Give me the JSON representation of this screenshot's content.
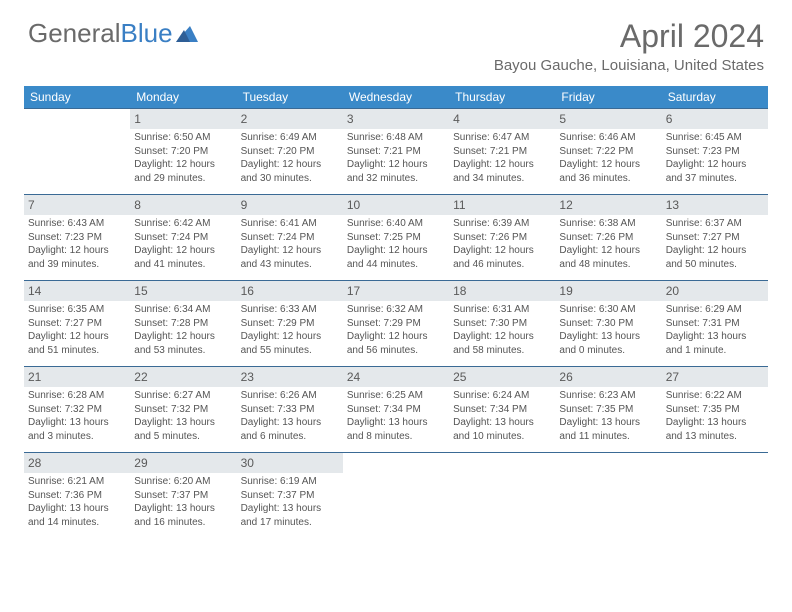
{
  "brand": {
    "part1": "General",
    "part2": "Blue"
  },
  "title": "April 2024",
  "location": "Bayou Gauche, Louisiana, United States",
  "weekdays": [
    "Sunday",
    "Monday",
    "Tuesday",
    "Wednesday",
    "Thursday",
    "Friday",
    "Saturday"
  ],
  "colors": {
    "header_bg": "#3a8ac9",
    "header_text": "#ffffff",
    "daynum_bg": "#e4e8eb",
    "border": "#3a6a95",
    "text": "#555555",
    "title": "#6a6a6a",
    "brand_blue": "#3a7fc4"
  },
  "weeks": [
    [
      {
        "n": "",
        "sr": "",
        "ss": "",
        "dl1": "",
        "dl2": ""
      },
      {
        "n": "1",
        "sr": "Sunrise: 6:50 AM",
        "ss": "Sunset: 7:20 PM",
        "dl1": "Daylight: 12 hours",
        "dl2": "and 29 minutes."
      },
      {
        "n": "2",
        "sr": "Sunrise: 6:49 AM",
        "ss": "Sunset: 7:20 PM",
        "dl1": "Daylight: 12 hours",
        "dl2": "and 30 minutes."
      },
      {
        "n": "3",
        "sr": "Sunrise: 6:48 AM",
        "ss": "Sunset: 7:21 PM",
        "dl1": "Daylight: 12 hours",
        "dl2": "and 32 minutes."
      },
      {
        "n": "4",
        "sr": "Sunrise: 6:47 AM",
        "ss": "Sunset: 7:21 PM",
        "dl1": "Daylight: 12 hours",
        "dl2": "and 34 minutes."
      },
      {
        "n": "5",
        "sr": "Sunrise: 6:46 AM",
        "ss": "Sunset: 7:22 PM",
        "dl1": "Daylight: 12 hours",
        "dl2": "and 36 minutes."
      },
      {
        "n": "6",
        "sr": "Sunrise: 6:45 AM",
        "ss": "Sunset: 7:23 PM",
        "dl1": "Daylight: 12 hours",
        "dl2": "and 37 minutes."
      }
    ],
    [
      {
        "n": "7",
        "sr": "Sunrise: 6:43 AM",
        "ss": "Sunset: 7:23 PM",
        "dl1": "Daylight: 12 hours",
        "dl2": "and 39 minutes."
      },
      {
        "n": "8",
        "sr": "Sunrise: 6:42 AM",
        "ss": "Sunset: 7:24 PM",
        "dl1": "Daylight: 12 hours",
        "dl2": "and 41 minutes."
      },
      {
        "n": "9",
        "sr": "Sunrise: 6:41 AM",
        "ss": "Sunset: 7:24 PM",
        "dl1": "Daylight: 12 hours",
        "dl2": "and 43 minutes."
      },
      {
        "n": "10",
        "sr": "Sunrise: 6:40 AM",
        "ss": "Sunset: 7:25 PM",
        "dl1": "Daylight: 12 hours",
        "dl2": "and 44 minutes."
      },
      {
        "n": "11",
        "sr": "Sunrise: 6:39 AM",
        "ss": "Sunset: 7:26 PM",
        "dl1": "Daylight: 12 hours",
        "dl2": "and 46 minutes."
      },
      {
        "n": "12",
        "sr": "Sunrise: 6:38 AM",
        "ss": "Sunset: 7:26 PM",
        "dl1": "Daylight: 12 hours",
        "dl2": "and 48 minutes."
      },
      {
        "n": "13",
        "sr": "Sunrise: 6:37 AM",
        "ss": "Sunset: 7:27 PM",
        "dl1": "Daylight: 12 hours",
        "dl2": "and 50 minutes."
      }
    ],
    [
      {
        "n": "14",
        "sr": "Sunrise: 6:35 AM",
        "ss": "Sunset: 7:27 PM",
        "dl1": "Daylight: 12 hours",
        "dl2": "and 51 minutes."
      },
      {
        "n": "15",
        "sr": "Sunrise: 6:34 AM",
        "ss": "Sunset: 7:28 PM",
        "dl1": "Daylight: 12 hours",
        "dl2": "and 53 minutes."
      },
      {
        "n": "16",
        "sr": "Sunrise: 6:33 AM",
        "ss": "Sunset: 7:29 PM",
        "dl1": "Daylight: 12 hours",
        "dl2": "and 55 minutes."
      },
      {
        "n": "17",
        "sr": "Sunrise: 6:32 AM",
        "ss": "Sunset: 7:29 PM",
        "dl1": "Daylight: 12 hours",
        "dl2": "and 56 minutes."
      },
      {
        "n": "18",
        "sr": "Sunrise: 6:31 AM",
        "ss": "Sunset: 7:30 PM",
        "dl1": "Daylight: 12 hours",
        "dl2": "and 58 minutes."
      },
      {
        "n": "19",
        "sr": "Sunrise: 6:30 AM",
        "ss": "Sunset: 7:30 PM",
        "dl1": "Daylight: 13 hours",
        "dl2": "and 0 minutes."
      },
      {
        "n": "20",
        "sr": "Sunrise: 6:29 AM",
        "ss": "Sunset: 7:31 PM",
        "dl1": "Daylight: 13 hours",
        "dl2": "and 1 minute."
      }
    ],
    [
      {
        "n": "21",
        "sr": "Sunrise: 6:28 AM",
        "ss": "Sunset: 7:32 PM",
        "dl1": "Daylight: 13 hours",
        "dl2": "and 3 minutes."
      },
      {
        "n": "22",
        "sr": "Sunrise: 6:27 AM",
        "ss": "Sunset: 7:32 PM",
        "dl1": "Daylight: 13 hours",
        "dl2": "and 5 minutes."
      },
      {
        "n": "23",
        "sr": "Sunrise: 6:26 AM",
        "ss": "Sunset: 7:33 PM",
        "dl1": "Daylight: 13 hours",
        "dl2": "and 6 minutes."
      },
      {
        "n": "24",
        "sr": "Sunrise: 6:25 AM",
        "ss": "Sunset: 7:34 PM",
        "dl1": "Daylight: 13 hours",
        "dl2": "and 8 minutes."
      },
      {
        "n": "25",
        "sr": "Sunrise: 6:24 AM",
        "ss": "Sunset: 7:34 PM",
        "dl1": "Daylight: 13 hours",
        "dl2": "and 10 minutes."
      },
      {
        "n": "26",
        "sr": "Sunrise: 6:23 AM",
        "ss": "Sunset: 7:35 PM",
        "dl1": "Daylight: 13 hours",
        "dl2": "and 11 minutes."
      },
      {
        "n": "27",
        "sr": "Sunrise: 6:22 AM",
        "ss": "Sunset: 7:35 PM",
        "dl1": "Daylight: 13 hours",
        "dl2": "and 13 minutes."
      }
    ],
    [
      {
        "n": "28",
        "sr": "Sunrise: 6:21 AM",
        "ss": "Sunset: 7:36 PM",
        "dl1": "Daylight: 13 hours",
        "dl2": "and 14 minutes."
      },
      {
        "n": "29",
        "sr": "Sunrise: 6:20 AM",
        "ss": "Sunset: 7:37 PM",
        "dl1": "Daylight: 13 hours",
        "dl2": "and 16 minutes."
      },
      {
        "n": "30",
        "sr": "Sunrise: 6:19 AM",
        "ss": "Sunset: 7:37 PM",
        "dl1": "Daylight: 13 hours",
        "dl2": "and 17 minutes."
      },
      {
        "n": "",
        "sr": "",
        "ss": "",
        "dl1": "",
        "dl2": ""
      },
      {
        "n": "",
        "sr": "",
        "ss": "",
        "dl1": "",
        "dl2": ""
      },
      {
        "n": "",
        "sr": "",
        "ss": "",
        "dl1": "",
        "dl2": ""
      },
      {
        "n": "",
        "sr": "",
        "ss": "",
        "dl1": "",
        "dl2": ""
      }
    ]
  ]
}
